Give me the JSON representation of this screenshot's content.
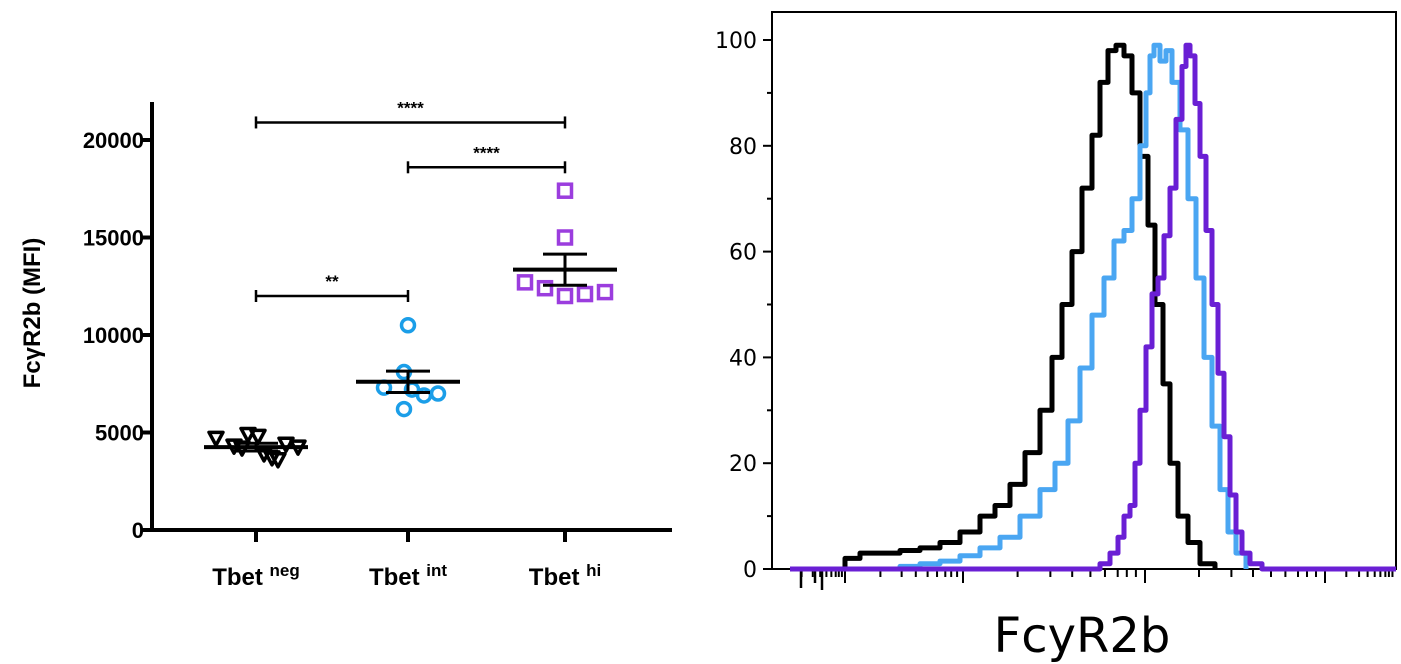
{
  "chart_data": [
    {
      "type": "scatter",
      "ylabel": "FcγR2b (MFI)",
      "xlabel": "",
      "ylim": [
        0,
        22000
      ],
      "yticks": [
        "0",
        "5000",
        "10000",
        "15000",
        "20000"
      ],
      "categories": [
        {
          "base": "Tbet",
          "sup": "neg",
          "color": "#000000",
          "marker": "triangle-down",
          "values": [
            4700,
            4300,
            4900,
            3900,
            3600,
            4800,
            4200,
            3700,
            4400,
            4250
          ],
          "mean": 4250,
          "sem": 200
        },
        {
          "base": "Tbet",
          "sup": "int",
          "color": "#1b9ee8",
          "marker": "circle",
          "values": [
            10500,
            8100,
            7300,
            6900,
            7000,
            7200,
            6200
          ],
          "mean": 7600,
          "sem": 550
        },
        {
          "base": "Tbet",
          "sup": "hi",
          "color": "#9b3dde",
          "marker": "square",
          "values": [
            17400,
            15000,
            12700,
            12400,
            12000,
            12100,
            12200
          ],
          "mean": 13350,
          "sem": 800
        }
      ],
      "significance": [
        {
          "from": 0,
          "to": 2,
          "y": 20900,
          "label": "****"
        },
        {
          "from": 1,
          "to": 2,
          "y": 18600,
          "label": "****"
        },
        {
          "from": 0,
          "to": 1,
          "y": 12000,
          "label": "**"
        }
      ]
    },
    {
      "type": "line",
      "xlabel": "FcyR2b",
      "ylim": [
        0,
        103
      ],
      "yticks": [
        "0",
        "20",
        "40",
        "60",
        "80",
        "100"
      ],
      "series": [
        {
          "color": "#000000",
          "points": [
            [
              830,
              0
            ],
            [
              845,
              2
            ],
            [
              860,
              3
            ],
            [
              880,
              3
            ],
            [
              900,
              3.5
            ],
            [
              920,
              4
            ],
            [
              940,
              5
            ],
            [
              960,
              7
            ],
            [
              980,
              10
            ],
            [
              995,
              12
            ],
            [
              1010,
              16
            ],
            [
              1025,
              22
            ],
            [
              1040,
              30
            ],
            [
              1052,
              40
            ],
            [
              1062,
              50
            ],
            [
              1072,
              60
            ],
            [
              1082,
              72
            ],
            [
              1092,
              82
            ],
            [
              1100,
              92
            ],
            [
              1108,
              98
            ],
            [
              1116,
              99
            ],
            [
              1124,
              97
            ],
            [
              1132,
              90
            ],
            [
              1140,
              78
            ],
            [
              1148,
              65
            ],
            [
              1155,
              50
            ],
            [
              1163,
              35
            ],
            [
              1170,
              20
            ],
            [
              1178,
              10
            ],
            [
              1188,
              5
            ],
            [
              1200,
              1
            ],
            [
              1215,
              0
            ]
          ]
        },
        {
          "color": "#4aa6f2",
          "points": [
            [
              880,
              0
            ],
            [
              900,
              0.5
            ],
            [
              920,
              1
            ],
            [
              940,
              1.5
            ],
            [
              960,
              2.5
            ],
            [
              980,
              4
            ],
            [
              1000,
              6
            ],
            [
              1020,
              10
            ],
            [
              1040,
              15
            ],
            [
              1055,
              20
            ],
            [
              1068,
              28
            ],
            [
              1080,
              38
            ],
            [
              1092,
              48
            ],
            [
              1104,
              55
            ],
            [
              1114,
              62
            ],
            [
              1124,
              64
            ],
            [
              1132,
              70
            ],
            [
              1140,
              80
            ],
            [
              1146,
              90
            ],
            [
              1150,
              97
            ],
            [
              1154,
              99
            ],
            [
              1160,
              96
            ],
            [
              1166,
              98
            ],
            [
              1172,
              92
            ],
            [
              1180,
              83
            ],
            [
              1188,
              70
            ],
            [
              1196,
              55
            ],
            [
              1204,
              40
            ],
            [
              1212,
              27
            ],
            [
              1220,
              15
            ],
            [
              1228,
              7
            ],
            [
              1236,
              3
            ],
            [
              1246,
              0
            ]
          ]
        },
        {
          "color": "#6a1fd4",
          "points": [
            [
              790,
              0
            ],
            [
              1050,
              0
            ],
            [
              1080,
              0
            ],
            [
              1100,
              1
            ],
            [
              1110,
              3
            ],
            [
              1118,
              6
            ],
            [
              1124,
              10
            ],
            [
              1130,
              12
            ],
            [
              1135,
              20
            ],
            [
              1140,
              30
            ],
            [
              1146,
              42
            ],
            [
              1152,
              52
            ],
            [
              1158,
              55
            ],
            [
              1164,
              63
            ],
            [
              1170,
              72
            ],
            [
              1176,
              85
            ],
            [
              1182,
              95
            ],
            [
              1186,
              99
            ],
            [
              1190,
              97
            ],
            [
              1195,
              88
            ],
            [
              1200,
              78
            ],
            [
              1206,
              64
            ],
            [
              1212,
              50
            ],
            [
              1218,
              37
            ],
            [
              1224,
              25
            ],
            [
              1230,
              14
            ],
            [
              1236,
              7
            ],
            [
              1242,
              3
            ],
            [
              1250,
              1
            ],
            [
              1262,
              0
            ],
            [
              1396,
              0
            ]
          ]
        }
      ]
    }
  ]
}
